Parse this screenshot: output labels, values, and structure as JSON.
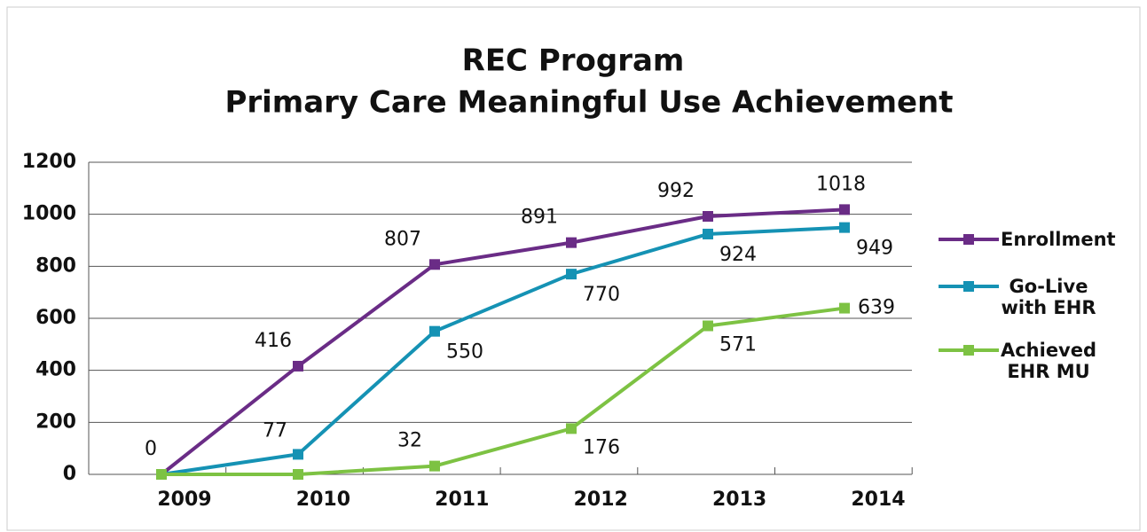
{
  "chart_data": {
    "type": "line",
    "title": "REC Program",
    "subtitle": "Primary Care Meaningful Use Achievement",
    "categories": [
      "2009",
      "2010",
      "2011",
      "2012",
      "2013",
      "2014"
    ],
    "series": [
      {
        "name": "Enrollment",
        "color": "#6a2c86",
        "values": [
          0,
          416,
          807,
          891,
          992,
          1018
        ],
        "value_labels": [
          "0",
          "416",
          "807",
          "891",
          "992",
          "1018"
        ]
      },
      {
        "name": "Go-Live with EHR",
        "color": "#1592b4",
        "values": [
          0,
          77,
          550,
          770,
          924,
          949
        ],
        "value_labels": [
          null,
          "77",
          "550",
          "770",
          "924",
          "949"
        ]
      },
      {
        "name": "Achieved EHR MU",
        "color": "#7dc243",
        "values": [
          0,
          0,
          32,
          176,
          571,
          639
        ],
        "value_labels": [
          null,
          null,
          "32",
          "176",
          "571",
          "639"
        ]
      }
    ],
    "ylim": [
      0,
      1200
    ],
    "yticks": [
      0,
      200,
      400,
      600,
      800,
      1000,
      1200
    ],
    "grid": true
  }
}
